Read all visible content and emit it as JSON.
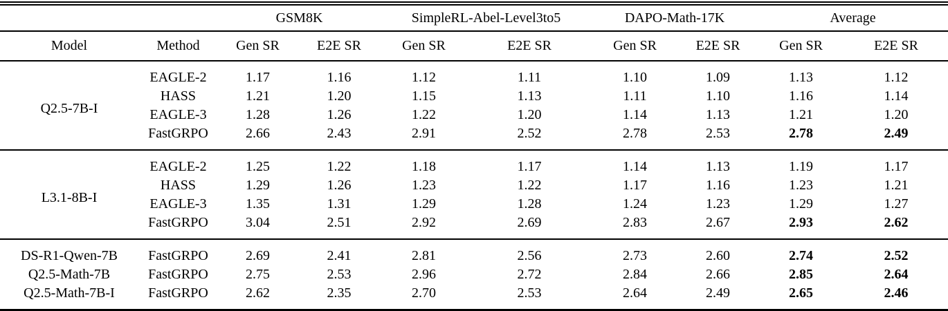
{
  "page": {
    "background_color": "#ffffff",
    "text_color": "#000000"
  },
  "table": {
    "header_groups": [
      {
        "label": "",
        "span": 2
      },
      {
        "label": "GSM8K",
        "span": 2
      },
      {
        "label": "SimpleRL-Abel-Level3to5",
        "span": 2
      },
      {
        "label": "DAPO-Math-17K",
        "span": 2
      },
      {
        "label": "Average",
        "span": 2
      }
    ],
    "columns": [
      "Model",
      "Method",
      "Gen SR",
      "E2E SR",
      "Gen SR",
      "E2E SR",
      "Gen SR",
      "E2E SR",
      "Gen SR",
      "E2E SR"
    ],
    "blocks": [
      {
        "models": [
          {
            "model": "Q2.5-7B-I",
            "rows": [
              {
                "method": "EAGLE-2",
                "values": [
                  "1.17",
                  "1.16",
                  "1.12",
                  "1.11",
                  "1.10",
                  "1.09",
                  "1.13",
                  "1.12"
                ],
                "bold_cols": []
              },
              {
                "method": "HASS",
                "values": [
                  "1.21",
                  "1.20",
                  "1.15",
                  "1.13",
                  "1.11",
                  "1.10",
                  "1.16",
                  "1.14"
                ],
                "bold_cols": []
              },
              {
                "method": "EAGLE-3",
                "values": [
                  "1.28",
                  "1.26",
                  "1.22",
                  "1.20",
                  "1.14",
                  "1.13",
                  "1.21",
                  "1.20"
                ],
                "bold_cols": []
              },
              {
                "method": "FastGRPO",
                "values": [
                  "2.66",
                  "2.43",
                  "2.91",
                  "2.52",
                  "2.78",
                  "2.53",
                  "2.78",
                  "2.49"
                ],
                "bold_cols": [
                  6,
                  7
                ]
              }
            ]
          }
        ]
      },
      {
        "models": [
          {
            "model": "L3.1-8B-I",
            "rows": [
              {
                "method": "EAGLE-2",
                "values": [
                  "1.25",
                  "1.22",
                  "1.18",
                  "1.17",
                  "1.14",
                  "1.13",
                  "1.19",
                  "1.17"
                ],
                "bold_cols": []
              },
              {
                "method": "HASS",
                "values": [
                  "1.29",
                  "1.26",
                  "1.23",
                  "1.22",
                  "1.17",
                  "1.16",
                  "1.23",
                  "1.21"
                ],
                "bold_cols": []
              },
              {
                "method": "EAGLE-3",
                "values": [
                  "1.35",
                  "1.31",
                  "1.29",
                  "1.28",
                  "1.24",
                  "1.23",
                  "1.29",
                  "1.27"
                ],
                "bold_cols": []
              },
              {
                "method": "FastGRPO",
                "values": [
                  "3.04",
                  "2.51",
                  "2.92",
                  "2.69",
                  "2.83",
                  "2.67",
                  "2.93",
                  "2.62"
                ],
                "bold_cols": [
                  6,
                  7
                ]
              }
            ]
          }
        ]
      },
      {
        "models": [
          {
            "model": "DS-R1-Qwen-7B",
            "rows": [
              {
                "method": "FastGRPO",
                "values": [
                  "2.69",
                  "2.41",
                  "2.81",
                  "2.56",
                  "2.73",
                  "2.60",
                  "2.74",
                  "2.52"
                ],
                "bold_cols": [
                  6,
                  7
                ]
              }
            ]
          },
          {
            "model": "Q2.5-Math-7B",
            "rows": [
              {
                "method": "FastGRPO",
                "values": [
                  "2.75",
                  "2.53",
                  "2.96",
                  "2.72",
                  "2.84",
                  "2.66",
                  "2.85",
                  "2.64"
                ],
                "bold_cols": [
                  6,
                  7
                ]
              }
            ]
          },
          {
            "model": "Q2.5-Math-7B-I",
            "rows": [
              {
                "method": "FastGRPO",
                "values": [
                  "2.62",
                  "2.35",
                  "2.70",
                  "2.53",
                  "2.64",
                  "2.49",
                  "2.65",
                  "2.46"
                ],
                "bold_cols": [
                  6,
                  7
                ]
              }
            ]
          }
        ]
      }
    ]
  }
}
